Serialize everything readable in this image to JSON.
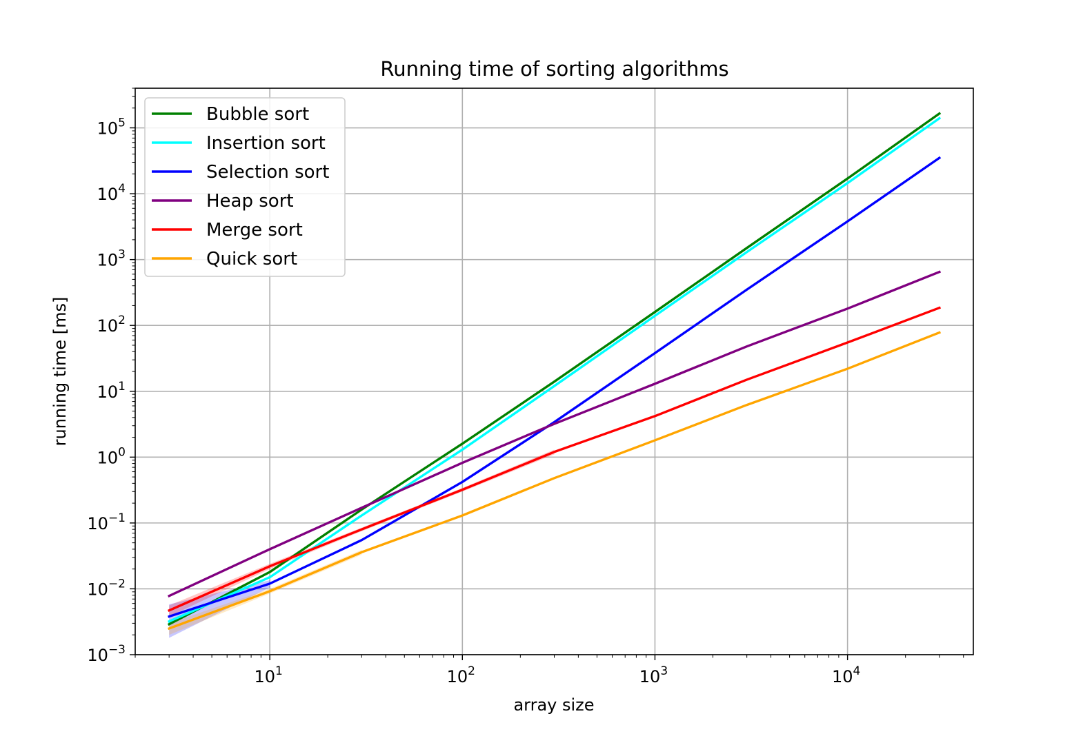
{
  "chart_data": {
    "type": "line",
    "title": "Running time of sorting algorithms",
    "xlabel": "array size",
    "ylabel": "running time [ms]",
    "xscale": "log",
    "yscale": "log",
    "xlim": [
      2,
      45000
    ],
    "ylim": [
      0.001,
      400000
    ],
    "grid": true,
    "legend_position": "upper-left",
    "x_ticks": [
      {
        "base": "10",
        "exp": "1",
        "value": 10
      },
      {
        "base": "10",
        "exp": "2",
        "value": 100
      },
      {
        "base": "10",
        "exp": "3",
        "value": 1000
      },
      {
        "base": "10",
        "exp": "4",
        "value": 10000
      }
    ],
    "y_ticks": [
      {
        "base": "10",
        "exp": "−3",
        "value": 0.001
      },
      {
        "base": "10",
        "exp": "−2",
        "value": 0.01
      },
      {
        "base": "10",
        "exp": "−1",
        "value": 0.1
      },
      {
        "base": "10",
        "exp": "0",
        "value": 1
      },
      {
        "base": "10",
        "exp": "1",
        "value": 10
      },
      {
        "base": "10",
        "exp": "2",
        "value": 100
      },
      {
        "base": "10",
        "exp": "3",
        "value": 1000
      },
      {
        "base": "10",
        "exp": "4",
        "value": 10000
      },
      {
        "base": "10",
        "exp": "5",
        "value": 100000
      }
    ],
    "x": [
      3,
      10,
      30,
      100,
      300,
      1000,
      3000,
      10000,
      30000
    ],
    "series": [
      {
        "name": "Bubble sort",
        "color": "#008000",
        "values": [
          0.0029,
          0.018,
          0.16,
          1.6,
          14,
          160,
          1500,
          17000,
          165000
        ]
      },
      {
        "name": "Insertion sort",
        "color": "#00ffff",
        "values": [
          0.0032,
          0.015,
          0.13,
          1.3,
          12,
          140,
          1300,
          14500,
          140000
        ]
      },
      {
        "name": "Selection sort",
        "color": "#0000ff",
        "values": [
          0.0038,
          0.012,
          0.055,
          0.42,
          3.4,
          38,
          350,
          3800,
          35000
        ]
      },
      {
        "name": "Heap sort",
        "color": "#800080",
        "values": [
          0.0078,
          0.04,
          0.17,
          0.82,
          3.2,
          13,
          48,
          180,
          650
        ]
      },
      {
        "name": "Merge sort",
        "color": "#ff0000",
        "values": [
          0.0047,
          0.022,
          0.08,
          0.32,
          1.2,
          4.2,
          15,
          55,
          185
        ]
      },
      {
        "name": "Quick sort",
        "color": "#ffa500",
        "values": [
          0.0025,
          0.0092,
          0.036,
          0.13,
          0.48,
          1.8,
          6.2,
          22,
          78
        ]
      }
    ],
    "bands": [
      {
        "series": "Selection sort",
        "color": "#0000ff",
        "lower": [
          0.0018,
          0.0105
        ],
        "upper": [
          0.0058,
          0.0135
        ]
      },
      {
        "series": "Merge sort",
        "color": "#ff0000",
        "lower": [
          0.0038,
          0.02,
          0.075,
          0.3,
          1.1
        ],
        "upper": [
          0.0056,
          0.024,
          0.085,
          0.34,
          1.3
        ]
      },
      {
        "series": "Quick sort",
        "color": "#ffa500",
        "lower": [
          0.002,
          0.0085,
          0.033
        ],
        "upper": [
          0.003,
          0.01,
          0.039
        ]
      }
    ]
  }
}
